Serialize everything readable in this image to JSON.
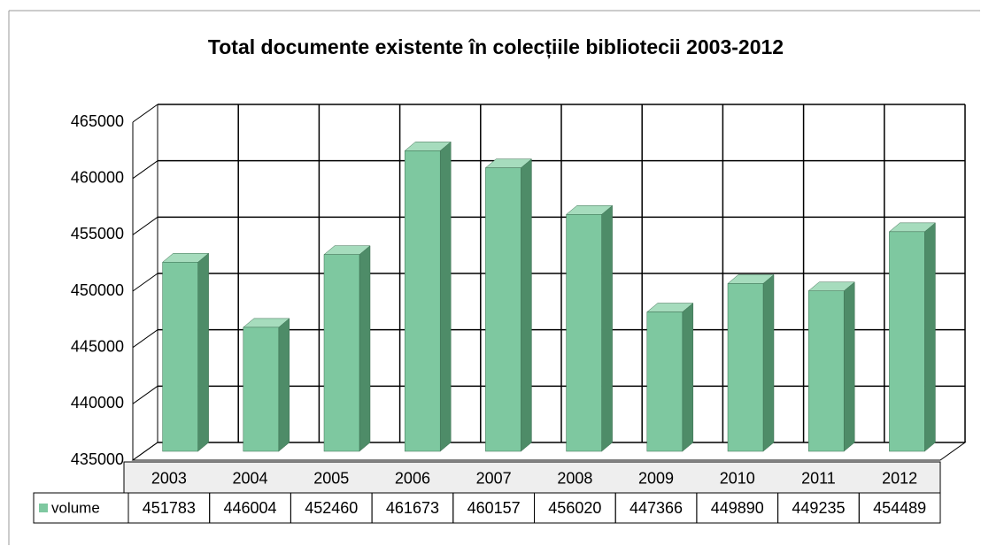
{
  "chart_data": {
    "type": "bar",
    "title": "Total documente existente în colecțiile bibliotecii 2003-2012",
    "categories": [
      "2003",
      "2004",
      "2005",
      "2006",
      "2007",
      "2008",
      "2009",
      "2010",
      "2011",
      "2012"
    ],
    "series": [
      {
        "name": "volume",
        "color": "#7ec8a0",
        "values": [
          451783,
          446004,
          452460,
          461673,
          460157,
          456020,
          447366,
          449890,
          449235,
          454489
        ]
      }
    ],
    "ylim": [
      435000,
      465000
    ],
    "yticks": [
      435000,
      440000,
      445000,
      450000,
      455000,
      460000,
      465000
    ],
    "grid": true,
    "data_table": true
  }
}
